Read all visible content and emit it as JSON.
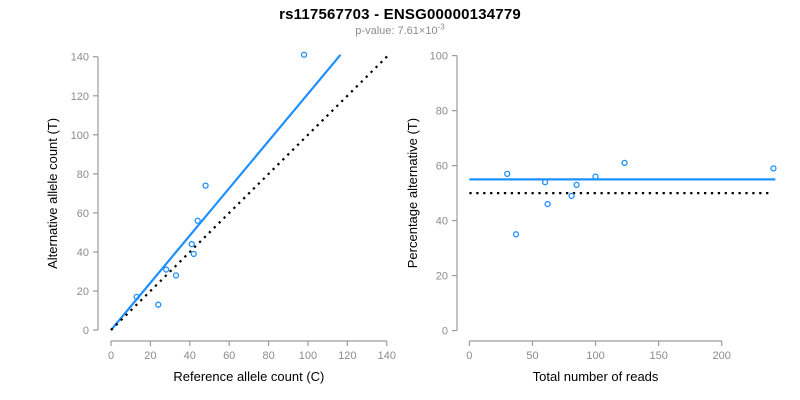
{
  "header": {
    "title": "rs117567703 - ENSG00000134779",
    "subtitle_prefix": "p-value: ",
    "subtitle_value": "7.61×10",
    "subtitle_exponent": "-3"
  },
  "colors": {
    "accent": "#1e90ff",
    "reference_line": "#000000",
    "axis": "#9b9b9b",
    "tick_label": "#8c8c8c",
    "title": "#000000",
    "subtitle": "#8c8c8c",
    "axis_title": "#000000"
  },
  "chart_data": [
    {
      "type": "scatter",
      "title": "",
      "xlabel": "Reference allele count (C)",
      "ylabel": "Alternative allele count (T)",
      "xlim": [
        0,
        140
      ],
      "ylim": [
        0,
        140
      ],
      "xticks": [
        0,
        20,
        40,
        60,
        80,
        100,
        120,
        140
      ],
      "yticks": [
        0,
        20,
        40,
        60,
        80,
        100,
        120,
        140
      ],
      "grid": false,
      "legend": "none",
      "points": [
        [
          13,
          17
        ],
        [
          24,
          13
        ],
        [
          28,
          31
        ],
        [
          33,
          28
        ],
        [
          41,
          44
        ],
        [
          42,
          39
        ],
        [
          44,
          56
        ],
        [
          48,
          74
        ],
        [
          98,
          141
        ]
      ],
      "lines": [
        {
          "name": "regression-line",
          "style": "solid",
          "color_key": "accent",
          "from": [
            0,
            0
          ],
          "to": [
            116.5,
            141
          ]
        },
        {
          "name": "identity-line",
          "style": "dotted",
          "color_key": "reference_line",
          "from": [
            0,
            0
          ],
          "to": [
            141.5,
            141.5
          ]
        }
      ]
    },
    {
      "type": "scatter",
      "title": "",
      "xlabel": "Total number of reads",
      "ylabel": "Percentage alternative (T)",
      "xlim": [
        0,
        200
      ],
      "ylim": [
        0,
        100
      ],
      "xticks": [
        0,
        50,
        100,
        150,
        200
      ],
      "yticks": [
        0,
        20,
        40,
        60,
        80,
        100
      ],
      "grid": false,
      "legend": "none",
      "points": [
        [
          30,
          57
        ],
        [
          37,
          35
        ],
        [
          60,
          54
        ],
        [
          62,
          46
        ],
        [
          81,
          49
        ],
        [
          85,
          53
        ],
        [
          100,
          56
        ],
        [
          123,
          61
        ],
        [
          241,
          59
        ]
      ],
      "lines": [
        {
          "name": "mean-percentage-line",
          "style": "solid",
          "color_key": "accent",
          "from": [
            0,
            55
          ],
          "to": [
            242.5,
            55
          ]
        },
        {
          "name": "fifty-percent-line",
          "style": "dotted",
          "color_key": "reference_line",
          "from": [
            0,
            50
          ],
          "to": [
            237,
            50
          ]
        }
      ]
    }
  ]
}
